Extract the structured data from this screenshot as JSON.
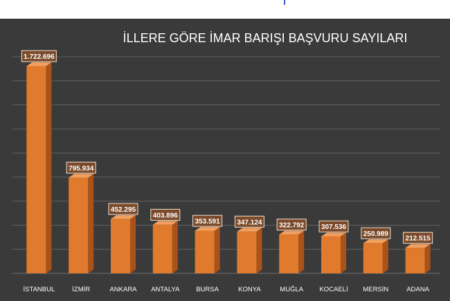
{
  "chart_data": {
    "type": "bar",
    "title": "İLLERE GÖRE İMAR BARIŞI BAŞVURU SAYILARI",
    "xlabel": "",
    "ylabel": "",
    "categories": [
      "İSTANBUL",
      "İZMİR",
      "ANKARA",
      "ANTALYA",
      "BURSA",
      "KONYA",
      "MUĞLA",
      "KOCAELİ",
      "MERSİN",
      "ADANA"
    ],
    "values": [
      1722696,
      795934,
      452295,
      403896,
      353591,
      347124,
      322792,
      307536,
      250989,
      212515
    ],
    "value_labels": [
      "1.722.696",
      "795.934",
      "452.295",
      "403.896",
      "353.591",
      "347.124",
      "322.792",
      "307.536",
      "250.989",
      "212.515"
    ],
    "ylim": [
      0,
      1800000
    ],
    "grid": true,
    "legend": "none",
    "colors": {
      "background": "#3a3a3a",
      "bar_front": "#e07a2c",
      "bar_side": "#a9521a",
      "bar_top": "#f2a060",
      "grid": "#7a7a7a",
      "text": "#ffffff",
      "label_box": "#7a4a2a",
      "label_border": "#f0e0d0"
    }
  }
}
